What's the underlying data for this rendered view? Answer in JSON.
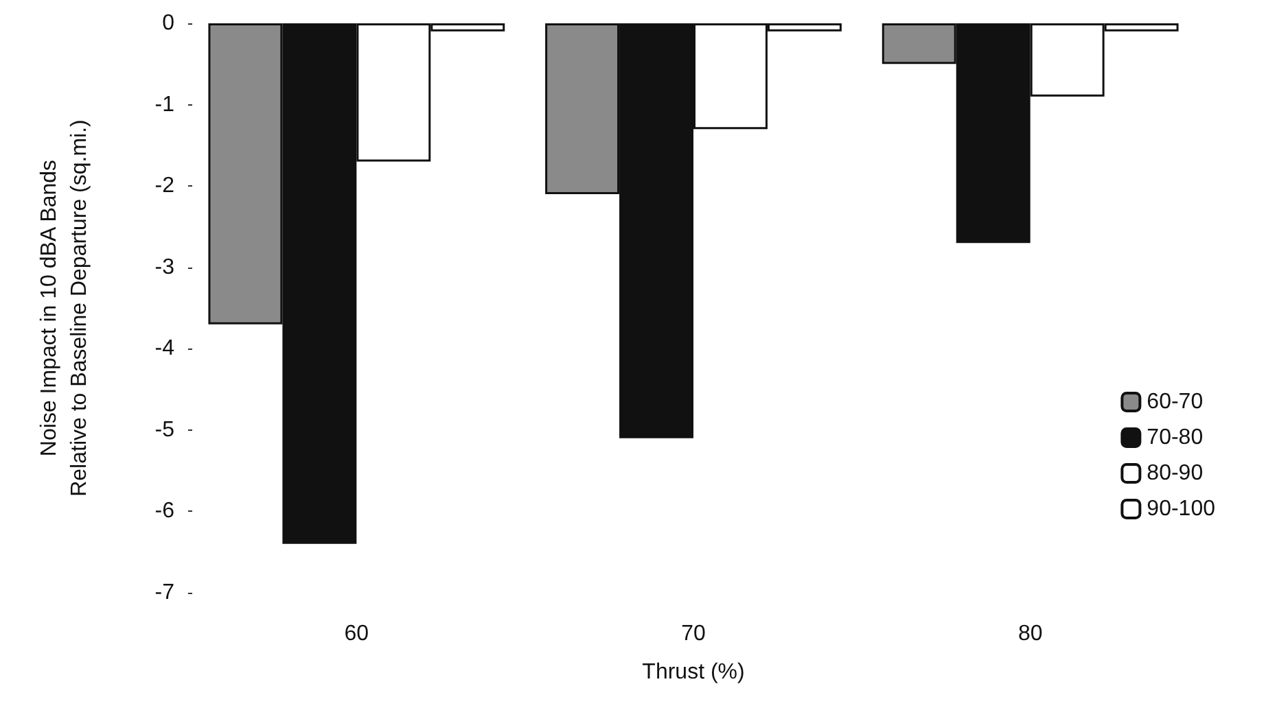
{
  "chart_data": {
    "type": "bar",
    "xlabel": "Thrust (%)",
    "ylabel": "Noise Impact in 10 dBA Bands\nRelative to Baseline Departure (sq.mi.)",
    "categories": [
      "60",
      "70",
      "80"
    ],
    "series": [
      {
        "name": "60-70",
        "color": "#8a8a8a",
        "values": [
          -3.7,
          -2.1,
          -0.5
        ]
      },
      {
        "name": "70-80",
        "color": "#111111",
        "values": [
          -6.4,
          -5.1,
          -2.7
        ]
      },
      {
        "name": "80-90",
        "color": "#ffffff",
        "values": [
          -1.7,
          -1.3,
          -0.9
        ]
      },
      {
        "name": "90-100",
        "color": "#ffffff",
        "values": [
          -0.1,
          -0.1,
          -0.1
        ]
      }
    ],
    "ylim": [
      -7,
      0
    ],
    "yticks": [
      0,
      -1,
      -2,
      -3,
      -4,
      -5,
      -6,
      -7
    ],
    "grid": false,
    "legend": "right"
  }
}
